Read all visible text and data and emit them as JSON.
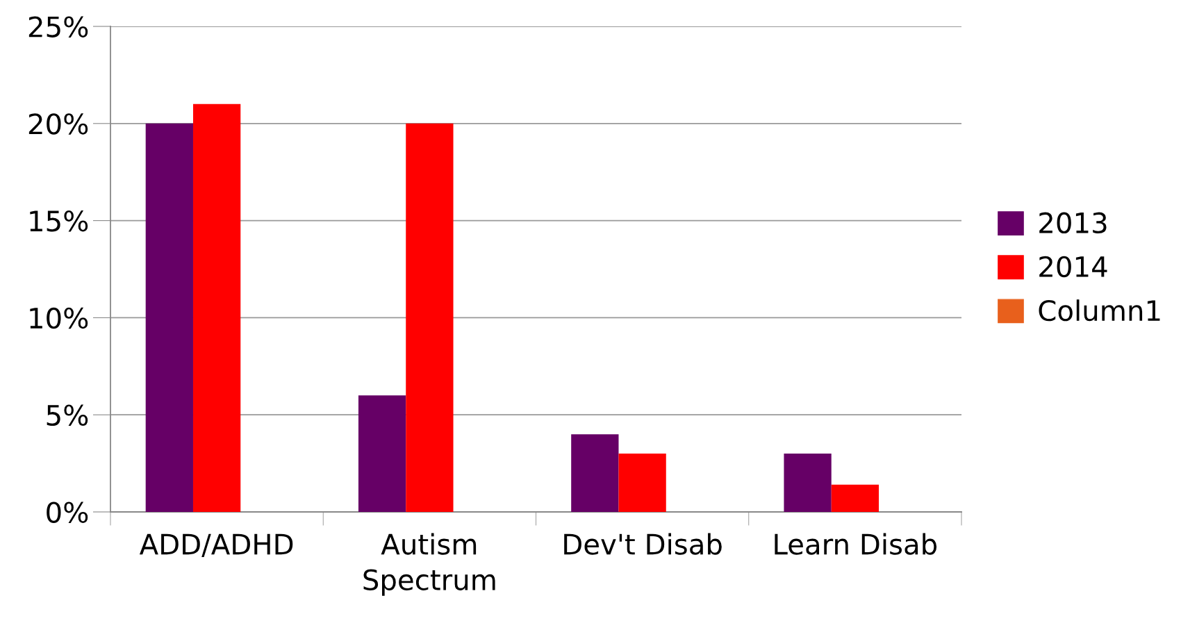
{
  "chart_data": {
    "type": "bar",
    "categories": [
      "ADD/ADHD",
      "Autism\nSpectrum",
      "Dev't Disab",
      "Learn Disab"
    ],
    "series": [
      {
        "name": "2013",
        "color": "#660066",
        "values": [
          20,
          6,
          4,
          3
        ]
      },
      {
        "name": "2014",
        "color": "#ff0000",
        "values": [
          21,
          20,
          3,
          1.4
        ]
      },
      {
        "name": "Column1",
        "color": "#e8601c",
        "values": [
          null,
          null,
          null,
          null
        ]
      }
    ],
    "ylim": [
      0,
      25
    ],
    "yticks": [
      {
        "value": 0,
        "label": "0%"
      },
      {
        "value": 5,
        "label": "5%"
      },
      {
        "value": 10,
        "label": "10%"
      },
      {
        "value": 15,
        "label": "15%"
      },
      {
        "value": 20,
        "label": "20%"
      },
      {
        "value": 25,
        "label": "25%"
      }
    ],
    "grid": "y",
    "legend": "right"
  }
}
